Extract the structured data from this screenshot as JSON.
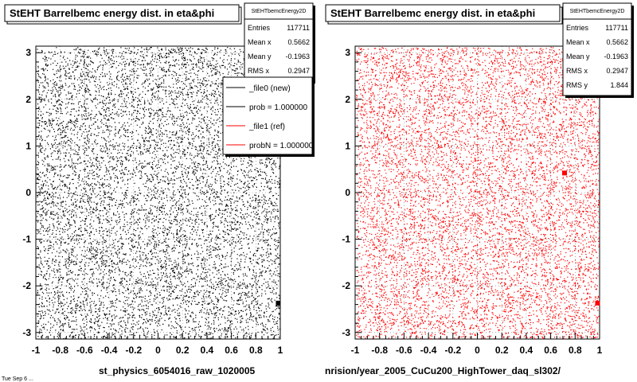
{
  "footer": {
    "left_text": "st_physics_6054016_raw_1020005",
    "right_text": "nrision/year_2005_CuCu200_HighTower_daq_sl302/",
    "corner_text": "Tue Sep  6 ..."
  },
  "legend": {
    "entries": [
      {
        "label": "_file0 (new)",
        "color": "#000000"
      },
      {
        "label": "prob = 1.000000",
        "color": "#000000"
      },
      {
        "label": "_file1 (ref)",
        "color": "#ff0000"
      },
      {
        "label": "probN = 1.000000",
        "color": "#ff0000"
      }
    ]
  },
  "chart_data": [
    {
      "type": "scatter",
      "title": "StEHT Barrelbemc energy dist. in eta&phi",
      "xlabel": "",
      "ylabel": "",
      "xlim": [
        -1,
        1
      ],
      "ylim": [
        -3.14,
        3.14
      ],
      "x_ticks": [
        "-1",
        "-0.8",
        "-0.6",
        "-0.4",
        "-0.2",
        "0",
        "0.2",
        "0.4",
        "0.6",
        "0.8",
        "1"
      ],
      "y_ticks": [
        "-3",
        "-2",
        "-1",
        "0",
        "1",
        "2",
        "3"
      ],
      "grid": true,
      "marker_color": "#000000",
      "description": "uniform dense point distribution over eta in [-1,1] and phi in [-pi,pi]",
      "hot_spots": [
        [
          0.99,
          -2.37
        ]
      ],
      "stats": {
        "name": "StEHTbemcEnergy2D",
        "rows": [
          {
            "label": "Entries",
            "value": "117711"
          },
          {
            "label": "Mean x",
            "value": "0.5662"
          },
          {
            "label": "Mean y",
            "value": "-0.1963"
          },
          {
            "label": "RMS x",
            "value": "0.2947"
          }
        ]
      }
    },
    {
      "type": "scatter",
      "title": "StEHT Barrelbemc energy dist. in eta&phi",
      "xlabel": "",
      "ylabel": "",
      "xlim": [
        -1,
        1
      ],
      "ylim": [
        -3.14,
        3.14
      ],
      "x_ticks": [
        "-1",
        "-0.8",
        "-0.6",
        "-0.4",
        "-0.2",
        "0",
        "0.2",
        "0.4",
        "0.6",
        "0.8",
        "1"
      ],
      "y_ticks": [
        "-3",
        "-2",
        "-1",
        "0",
        "1",
        "2",
        "3"
      ],
      "grid": true,
      "marker_color": "#ff0000",
      "description": "uniform dense point distribution over eta in [-1,1] and phi in [-pi,pi]",
      "hot_spots": [
        [
          0.99,
          -2.37
        ],
        [
          0.72,
          0.42
        ]
      ],
      "stats": {
        "name": "StEHTbemcEnergy2D",
        "rows": [
          {
            "label": "Entries",
            "value": "117711"
          },
          {
            "label": "Mean x",
            "value": "0.5662"
          },
          {
            "label": "Mean y",
            "value": "-0.1963"
          },
          {
            "label": "RMS x",
            "value": "0.2947"
          },
          {
            "label": "RMS y",
            "value": "1.844"
          }
        ]
      }
    }
  ]
}
